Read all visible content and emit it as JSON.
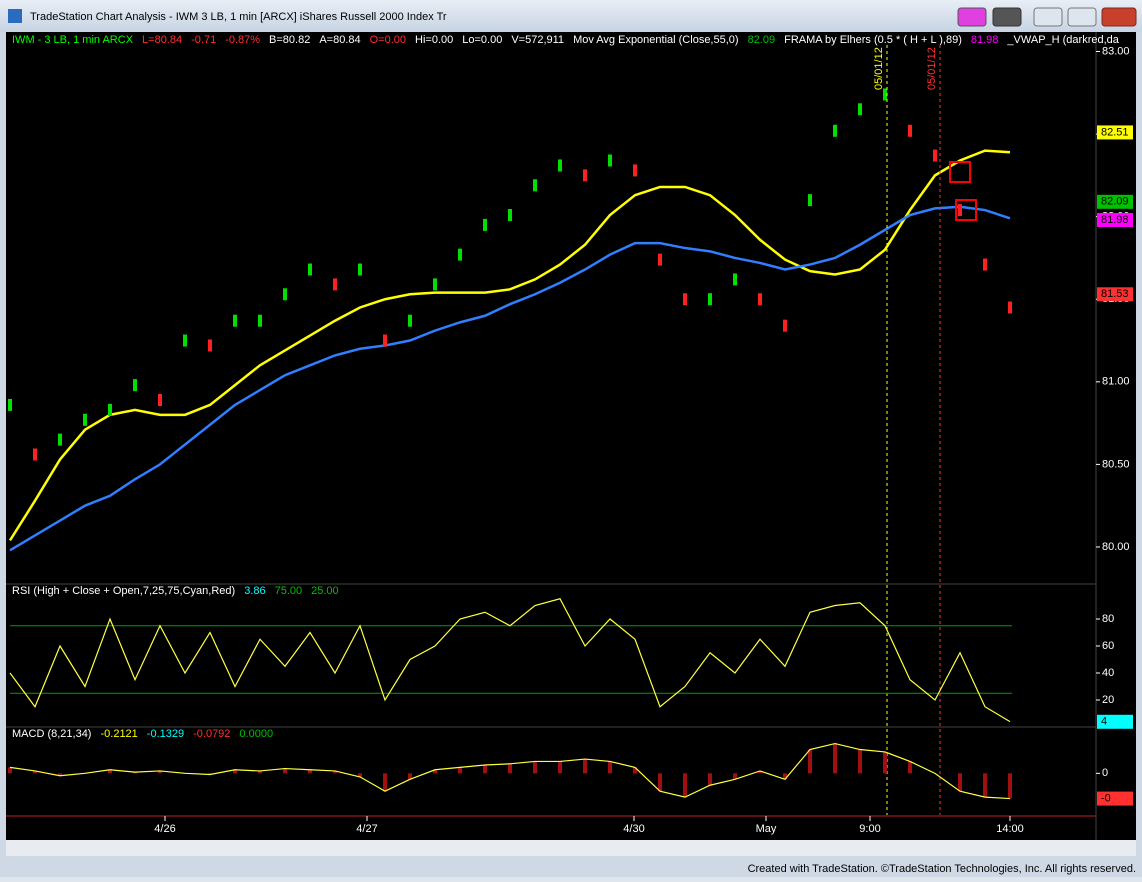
{
  "window": {
    "title": "TradeStation Chart Analysis - IWM 3 LB, 1 min [ARCX] iShares Russell 2000 Index Tr",
    "footer": "Created with TradeStation. ©TradeStation Technologies, Inc. All rights reserved."
  },
  "price_panel": {
    "legend": [
      {
        "text": "IWM - 3 LB, 1 min  ARCX",
        "color": "#00ff00"
      },
      {
        "text": "L=80.84",
        "color": "#ff3030"
      },
      {
        "text": "-0.71",
        "color": "#ff3030"
      },
      {
        "text": "-0.87%",
        "color": "#ff3030"
      },
      {
        "text": "B=80.82",
        "color": "#ffffff"
      },
      {
        "text": "A=80.84",
        "color": "#ffffff"
      },
      {
        "text": "O=0.00",
        "color": "#ff3030"
      },
      {
        "text": "Hi=0.00",
        "color": "#ffffff"
      },
      {
        "text": "Lo=0.00",
        "color": "#ffffff"
      },
      {
        "text": "V=572,911",
        "color": "#ffffff"
      },
      {
        "text": "Mov Avg Exponential (Close,55,0)",
        "color": "#ffffff"
      },
      {
        "text": "82.09",
        "color": "#00c000"
      },
      {
        "text": "FRAMA by Elhers (0.5 * ( H + L ),89)",
        "color": "#ffffff"
      },
      {
        "text": "81.98",
        "color": "#ff00ff"
      },
      {
        "text": "_VWAP_H (darkred,da",
        "color": "#ffffff"
      }
    ],
    "ylim": [
      79.8,
      83.1
    ],
    "yticks": [
      {
        "value": 80,
        "label": "80.00"
      },
      {
        "value": 80.5,
        "label": "80.50"
      },
      {
        "value": 81,
        "label": "81.00"
      },
      {
        "value": 81.5,
        "label": "81.50"
      },
      {
        "value": 82,
        "label": "82.00"
      },
      {
        "value": 82.5,
        "label": "82.50"
      },
      {
        "value": 83,
        "label": "83.00"
      }
    ],
    "value_boxes": [
      {
        "value": 82.51,
        "label": "82.51",
        "color": "#ffff00"
      },
      {
        "value": 82.09,
        "label": "82.09",
        "color": "#00c000"
      },
      {
        "value": 81.98,
        "label": "81.98",
        "color": "#ff00ff"
      },
      {
        "value": 81.53,
        "label": "81.53",
        "color": "#ff3030"
      }
    ],
    "annotations": [
      {
        "text": "05/01/12",
        "color": "#ffff00"
      },
      {
        "text": "05/01/12",
        "color": "#ff3030"
      }
    ],
    "bars": [
      80.86,
      80.56,
      80.65,
      80.77,
      80.83,
      80.98,
      80.89,
      81.25,
      81.22,
      81.37,
      81.37,
      81.53,
      81.68,
      81.59,
      81.68,
      81.25,
      81.37,
      81.59,
      81.77,
      81.95,
      82.01,
      82.19,
      82.31,
      82.25,
      82.34,
      82.28,
      81.74,
      81.5,
      81.5,
      81.62,
      81.5,
      81.34,
      82.1,
      82.52,
      82.65,
      82.74,
      82.52,
      82.37,
      82.04,
      81.71,
      81.45
    ],
    "series": [
      {
        "color": "#ffff00",
        "values": [
          80.04,
          80.28,
          80.53,
          80.71,
          80.8,
          80.83,
          80.8,
          80.8,
          80.86,
          80.98,
          81.1,
          81.19,
          81.28,
          81.37,
          81.45,
          81.5,
          81.53,
          81.54,
          81.54,
          81.54,
          81.56,
          81.62,
          81.71,
          81.83,
          82.01,
          82.13,
          82.18,
          82.18,
          82.13,
          82.01,
          81.86,
          81.74,
          81.67,
          81.65,
          81.68,
          81.8,
          82.04,
          82.25,
          82.34,
          82.4,
          82.39
        ]
      },
      {
        "color": "#2f7fff",
        "values": [
          79.98,
          80.07,
          80.16,
          80.25,
          80.31,
          80.41,
          80.5,
          80.62,
          80.74,
          80.86,
          80.95,
          81.04,
          81.1,
          81.16,
          81.2,
          81.22,
          81.25,
          81.31,
          81.36,
          81.4,
          81.47,
          81.53,
          81.6,
          81.68,
          81.77,
          81.84,
          81.84,
          81.81,
          81.79,
          81.75,
          81.72,
          81.68,
          81.71,
          81.75,
          81.83,
          81.92,
          82.01,
          82.05,
          82.06,
          82.04,
          81.99
        ]
      }
    ]
  },
  "rsi_panel": {
    "legend": [
      {
        "text": "RSI (High + Close + Open,7,25,75,Cyan,Red)",
        "color": "#ffffff"
      },
      {
        "text": "3.86",
        "color": "#00ffff"
      },
      {
        "text": "75.00",
        "color": "#00c000"
      },
      {
        "text": "25.00",
        "color": "#00c000"
      }
    ],
    "ylim": [
      0,
      100
    ],
    "yticks": [
      20,
      40,
      60,
      80
    ],
    "levels": [
      75,
      25
    ],
    "value_box": {
      "value": 3.86,
      "label": "4",
      "color": "#00ffff"
    },
    "values": [
      40,
      15,
      60,
      30,
      80,
      35,
      75,
      40,
      70,
      30,
      65,
      45,
      70,
      40,
      75,
      20,
      50,
      60,
      80,
      85,
      75,
      90,
      95,
      60,
      80,
      65,
      15,
      30,
      55,
      40,
      65,
      45,
      85,
      90,
      92,
      75,
      35,
      20,
      55,
      15,
      4
    ]
  },
  "macd_panel": {
    "legend": [
      {
        "text": "MACD (8,21,34)",
        "color": "#ffffff"
      },
      {
        "text": "-0.2121",
        "color": "#ffff00"
      },
      {
        "text": "-0.1329",
        "color": "#00ffff"
      },
      {
        "text": "-0.0792",
        "color": "#ff3030"
      },
      {
        "text": "0.0000",
        "color": "#00c000"
      }
    ],
    "ylim": [
      -0.35,
      0.28
    ],
    "yticks": [
      0
    ],
    "value_box": {
      "value": -0.2121,
      "label": "-0",
      "color": "#ff3030"
    },
    "values": [
      0.05,
      0.02,
      -0.02,
      0,
      0.03,
      0.01,
      0.02,
      0,
      -0.01,
      0.03,
      0.02,
      0.04,
      0.03,
      0.02,
      -0.03,
      -0.15,
      -0.05,
      0.03,
      0.05,
      0.07,
      0.08,
      0.1,
      0.1,
      0.12,
      0.1,
      0.05,
      -0.15,
      -0.2,
      -0.1,
      -0.05,
      0.02,
      -0.05,
      0.2,
      0.25,
      0.2,
      0.18,
      0.1,
      0,
      -0.15,
      -0.2,
      -0.2121
    ]
  },
  "x_axis": {
    "labels": [
      "4/26",
      "4/27",
      "4/30",
      "May",
      "9:00",
      "14:00"
    ]
  }
}
